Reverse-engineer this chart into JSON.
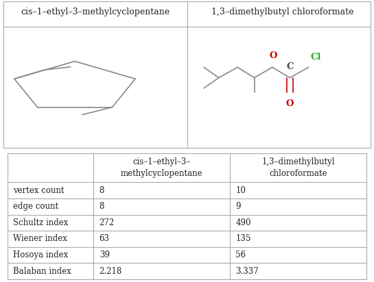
{
  "col1_header": "cis–1–ethyl–3–methylcyclopentane",
  "col2_header": "1,3–dimethylbutyl chloroformate",
  "table_col1_header": "cis–1–ethyl–3–\nmethylcyclopentane",
  "table_col2_header": "1,3–dimethylbutyl\nchloroformate",
  "row_labels": [
    "vertex count",
    "edge count",
    "Schultz index",
    "Wiener index",
    "Hosoya index",
    "Balaban index"
  ],
  "col1_values": [
    "8",
    "8",
    "272",
    "63",
    "39",
    "2.218"
  ],
  "col2_values": [
    "10",
    "9",
    "490",
    "135",
    "56",
    "3.337"
  ],
  "background_color": "#ffffff",
  "text_color": "#222222",
  "bond_color": "#888888",
  "o_color": "#cc0000",
  "cl_color": "#22aa22",
  "c_color": "#444444",
  "table_line_color": "#aaaaaa"
}
